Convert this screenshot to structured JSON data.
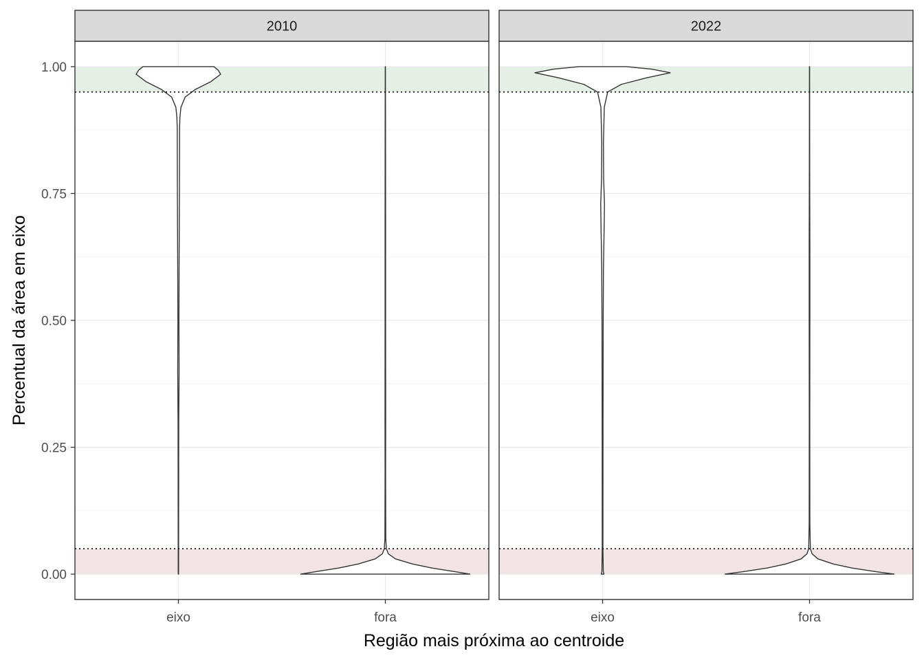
{
  "chart_data": {
    "type": "violin",
    "xlabel": "Região mais próxima ao centroide",
    "ylabel": "Percentual da área em eixo",
    "ylim": [
      -0.05,
      1.05
    ],
    "y_ticks": [
      "0.00",
      "0.25",
      "0.50",
      "0.75",
      "1.00"
    ],
    "categories": [
      "eixo",
      "fora"
    ],
    "grid": true,
    "reference_lines": {
      "linetype": "dotted",
      "y": [
        0.05,
        0.95
      ]
    },
    "bands": [
      {
        "name": "high",
        "from": 0.95,
        "to": 1.0,
        "color": "#e5efe5"
      },
      {
        "name": "low",
        "from": 0.0,
        "to": 0.05,
        "color": "#f2e4e4"
      }
    ],
    "facets": [
      {
        "label": "2010",
        "violins": [
          {
            "category": "eixo",
            "profile": [
              [
                0.0,
                0.002
              ],
              [
                0.3,
                0.004
              ],
              [
                0.35,
                0.006
              ],
              [
                0.4,
                0.008
              ],
              [
                0.5,
                0.006
              ],
              [
                0.6,
                0.008
              ],
              [
                0.75,
                0.012
              ],
              [
                0.88,
                0.014
              ],
              [
                0.9,
                0.018
              ],
              [
                0.92,
                0.03
              ],
              [
                0.94,
                0.08
              ],
              [
                0.955,
                0.2
              ],
              [
                0.97,
                0.38
              ],
              [
                0.985,
                0.5
              ],
              [
                0.993,
                0.47
              ],
              [
                1.0,
                0.42
              ]
            ]
          },
          {
            "category": "fora",
            "profile": [
              [
                0.0,
                1.0
              ],
              [
                0.005,
                0.82
              ],
              [
                0.012,
                0.55
              ],
              [
                0.02,
                0.32
              ],
              [
                0.03,
                0.12
              ],
              [
                0.04,
                0.035
              ],
              [
                0.05,
                0.012
              ],
              [
                0.07,
                0.005
              ],
              [
                0.2,
                0.003
              ],
              [
                0.3,
                0.004
              ],
              [
                0.5,
                0.003
              ],
              [
                0.7,
                0.003
              ],
              [
                0.9,
                0.002
              ],
              [
                1.0,
                0.001
              ]
            ]
          }
        ]
      },
      {
        "label": "2022",
        "violins": [
          {
            "category": "eixo",
            "profile": [
              [
                0.0,
                0.016
              ],
              [
                0.005,
                0.008
              ],
              [
                0.05,
                0.004
              ],
              [
                0.3,
                0.005
              ],
              [
                0.5,
                0.007
              ],
              [
                0.6,
                0.01
              ],
              [
                0.7,
                0.02
              ],
              [
                0.73,
                0.022
              ],
              [
                0.78,
                0.012
              ],
              [
                0.85,
                0.01
              ],
              [
                0.92,
                0.02
              ],
              [
                0.95,
                0.06
              ],
              [
                0.965,
                0.22
              ],
              [
                0.978,
                0.52
              ],
              [
                0.988,
                0.8
              ],
              [
                0.995,
                0.58
              ],
              [
                1.0,
                0.28
              ]
            ]
          },
          {
            "category": "fora",
            "profile": [
              [
                0.0,
                1.0
              ],
              [
                0.005,
                0.78
              ],
              [
                0.012,
                0.5
              ],
              [
                0.02,
                0.28
              ],
              [
                0.03,
                0.1
              ],
              [
                0.04,
                0.03
              ],
              [
                0.05,
                0.01
              ],
              [
                0.1,
                0.004
              ],
              [
                0.3,
                0.003
              ],
              [
                0.5,
                0.004
              ],
              [
                0.65,
                0.004
              ],
              [
                0.8,
                0.002
              ],
              [
                1.0,
                0.001
              ]
            ]
          }
        ]
      }
    ]
  }
}
